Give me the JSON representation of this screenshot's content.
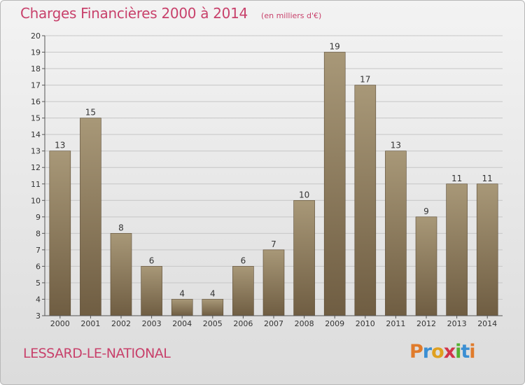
{
  "header": {
    "title": "Charges Financières 2000 à 2014",
    "subtitle": "(en milliers d'€)"
  },
  "footer": {
    "commune": "LESSARD-LE-NATIONAL",
    "logo_text": "Proxiti"
  },
  "colors": {
    "title": "#c8416b",
    "bar_top": "#a89878",
    "bar_bottom": "#6f5d42",
    "grid": "#c6c6c6",
    "logo_letters": [
      "#e07b2b",
      "#3b8fd3",
      "#e0a020",
      "#d1344a",
      "#55b030",
      "#3b8fd3",
      "#e07b2b"
    ]
  },
  "chart_data": {
    "type": "bar",
    "title": "Charges Financières 2000 à 2014",
    "subtitle": "(en milliers d'€)",
    "categories": [
      "2000",
      "2001",
      "2002",
      "2003",
      "2004",
      "2005",
      "2006",
      "2007",
      "2008",
      "2009",
      "2010",
      "2011",
      "2012",
      "2013",
      "2014"
    ],
    "values": [
      13,
      15,
      8,
      6,
      4,
      4,
      6,
      7,
      10,
      19,
      17,
      13,
      9,
      11,
      11
    ],
    "ylim": [
      3,
      20
    ],
    "yticks": [
      3,
      4,
      5,
      6,
      7,
      8,
      9,
      10,
      11,
      12,
      13,
      14,
      15,
      16,
      17,
      18,
      19,
      20
    ],
    "grid": true,
    "legend": "none"
  }
}
